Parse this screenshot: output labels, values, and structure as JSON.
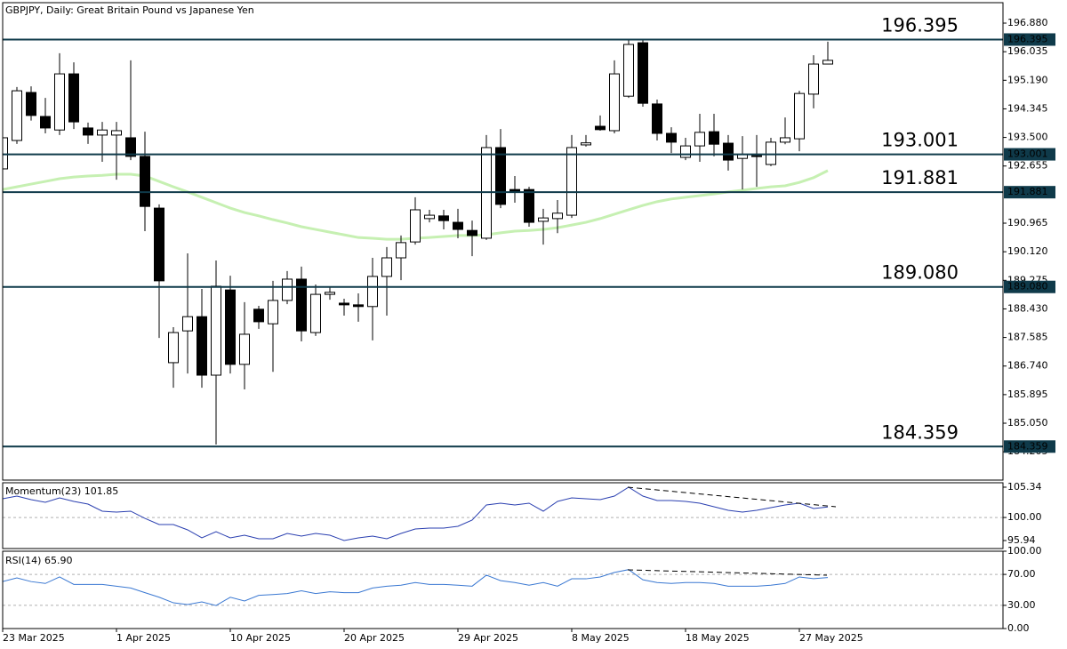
{
  "chart_data": [
    {
      "type": "candlestick",
      "title": "GBPJPY, Daily:  Great Britain Pound vs Japanese Yen",
      "categories": [
        "23 Mar 2025",
        null,
        null,
        null,
        null,
        null,
        null,
        null,
        "1 Apr 2025",
        null,
        null,
        null,
        null,
        null,
        null,
        null,
        "10 Apr 2025",
        null,
        null,
        null,
        null,
        null,
        null,
        null,
        "20 Apr 2025",
        null,
        null,
        null,
        null,
        null,
        null,
        null,
        "29 Apr 2025",
        null,
        null,
        null,
        null,
        null,
        null,
        null,
        "8 May 2025",
        null,
        null,
        null,
        null,
        null,
        null,
        null,
        "18 May 2025",
        null,
        null,
        null,
        null,
        null,
        null,
        null,
        "27 May 2025",
        null,
        null
      ],
      "open": [
        192.57,
        193.41,
        194.83,
        194.12,
        193.72,
        195.38,
        193.78,
        193.57,
        193.57,
        193.49,
        192.94,
        191.41,
        186.84,
        187.78,
        188.2,
        186.47,
        188.99,
        186.79,
        188.42,
        187.99,
        188.68,
        189.31,
        187.73,
        188.86,
        188.6,
        188.55,
        188.5,
        189.39,
        189.94,
        190.41,
        191.1,
        191.18,
        190.99,
        190.75,
        190.52,
        193.2,
        191.96,
        191.96,
        191.02,
        191.1,
        191.2,
        193.28,
        193.83,
        193.7,
        194.72,
        196.3,
        194.49,
        193.62,
        192.91,
        193.25,
        193.67,
        193.33,
        192.88,
        192.96,
        192.7,
        193.36,
        193.46,
        194.78,
        195.67
      ],
      "high": [
        193.7,
        194.99,
        195.01,
        194.67,
        195.99,
        195.72,
        193.94,
        193.96,
        193.96,
        195.78,
        193.67,
        191.52,
        187.89,
        190.07,
        189.02,
        189.86,
        189.41,
        188.63,
        188.52,
        189.26,
        189.55,
        189.68,
        189.15,
        189.1,
        188.73,
        188.89,
        189.94,
        190.26,
        190.6,
        191.73,
        191.36,
        191.36,
        191.39,
        191.04,
        193.57,
        193.75,
        192.36,
        192.04,
        191.39,
        191.65,
        193.57,
        193.57,
        194.15,
        195.78,
        196.38,
        196.38,
        194.62,
        193.8,
        193.49,
        194.2,
        194.2,
        193.57,
        193.54,
        193.57,
        193.49,
        194.09,
        194.88,
        195.93,
        196.33
      ],
      "low": [
        192.4,
        193.31,
        194.0,
        193.62,
        193.57,
        193.75,
        193.31,
        192.78,
        192.25,
        192.83,
        190.73,
        187.57,
        186.1,
        186.52,
        186.1,
        184.42,
        186.52,
        186.05,
        187.84,
        186.57,
        188.57,
        187.47,
        187.63,
        188.7,
        188.23,
        188.05,
        187.5,
        188.23,
        189.28,
        190.33,
        190.99,
        190.78,
        190.52,
        189.99,
        190.47,
        191.41,
        191.57,
        190.86,
        190.33,
        190.67,
        191.12,
        193.23,
        193.7,
        193.62,
        194.67,
        194.41,
        193.41,
        193.04,
        192.83,
        192.78,
        192.94,
        192.52,
        191.96,
        192.04,
        192.65,
        193.3,
        193.09,
        194.36,
        195.67
      ],
      "close": [
        193.49,
        194.88,
        194.15,
        193.78,
        195.38,
        193.96,
        193.57,
        193.72,
        193.7,
        192.94,
        191.46,
        189.26,
        187.73,
        188.2,
        186.47,
        189.1,
        186.79,
        187.68,
        188.05,
        188.68,
        189.31,
        187.78,
        188.86,
        188.92,
        188.55,
        188.5,
        189.39,
        189.94,
        190.39,
        191.36,
        191.2,
        191.04,
        190.78,
        190.6,
        193.2,
        191.52,
        191.91,
        190.99,
        191.12,
        191.26,
        193.2,
        193.34,
        193.73,
        195.38,
        196.25,
        194.51,
        193.62,
        193.36,
        193.25,
        193.65,
        193.3,
        192.83,
        192.99,
        192.94,
        193.36,
        193.49,
        194.8,
        195.67,
        195.78
      ],
      "up_color": "#ffffff",
      "down_color": "#000000",
      "moving_average": {
        "color": "#c6f0b2",
        "values": [
          191.96,
          192.04,
          192.12,
          192.2,
          192.28,
          192.33,
          192.36,
          192.38,
          192.41,
          192.41,
          192.36,
          192.2,
          192.04,
          191.89,
          191.73,
          191.57,
          191.41,
          191.28,
          191.18,
          191.07,
          190.97,
          190.86,
          190.78,
          190.7,
          190.62,
          190.54,
          190.52,
          190.49,
          190.49,
          190.52,
          190.54,
          190.57,
          190.6,
          190.6,
          190.62,
          190.68,
          190.73,
          190.75,
          190.78,
          190.83,
          190.91,
          190.99,
          191.1,
          191.23,
          191.36,
          191.49,
          191.6,
          191.68,
          191.73,
          191.78,
          191.83,
          191.89,
          191.94,
          191.99,
          192.04,
          192.07,
          192.17,
          192.31,
          192.52
        ]
      },
      "levels": [
        196.395,
        193.001,
        191.881,
        {
          "value": 189.08,
          "label": "189.080"
        },
        184.359
      ],
      "level_color": "#0f3a4a",
      "ylim": [
        183.368,
        197.485
      ],
      "yticks": [
        {
          "value": 196.88,
          "label": "196.880"
        },
        196.035,
        {
          "value": 195.19,
          "label": "195.190"
        },
        194.345,
        {
          "value": 193.5,
          "label": "193.500"
        },
        192.655,
        190.965,
        {
          "value": 190.12,
          "label": "190.120"
        },
        189.275,
        {
          "value": 188.43,
          "label": "188.430"
        },
        187.585,
        {
          "value": 186.74,
          "label": "186.740"
        },
        185.895,
        {
          "value": 185.05,
          "label": "185.050"
        },
        184.205
      ]
    },
    {
      "type": "line",
      "title": "Momentum(23) 101.85",
      "color": "#2a3fb0",
      "values": [
        103.3,
        103.77,
        103.15,
        102.68,
        103.46,
        102.83,
        102.36,
        101.11,
        100.95,
        101.11,
        99.85,
        98.76,
        98.76,
        97.82,
        96.41,
        97.5,
        96.41,
        96.88,
        96.25,
        96.25,
        97.19,
        96.72,
        97.19,
        96.88,
        95.94,
        96.41,
        96.72,
        96.25,
        97.19,
        97.98,
        98.13,
        98.13,
        98.45,
        99.54,
        102.21,
        102.52,
        102.21,
        102.52,
        101.11,
        102.83,
        103.46,
        103.3,
        103.15,
        103.77,
        105.34,
        103.77,
        102.99,
        102.99,
        102.83,
        102.52,
        101.89,
        101.27,
        100.95,
        101.27,
        101.74,
        102.21,
        102.52,
        101.58,
        101.85
      ],
      "ylim": [
        94.53,
        106.12
      ],
      "yticks": [
        105.34,
        {
          "value": 100,
          "label": "100.00"
        },
        95.94
      ],
      "reference_lines": [
        100
      ]
    },
    {
      "type": "line",
      "title": "RSI(14) 65.90",
      "color": "#3a78d2",
      "values": [
        60.7,
        65.5,
        60.7,
        58.3,
        66.7,
        57.1,
        57.1,
        57.1,
        54.8,
        52.4,
        46.4,
        40.5,
        33.3,
        31.0,
        34.5,
        29.8,
        40.5,
        35.7,
        42.9,
        44.0,
        45.2,
        48.8,
        45.2,
        47.6,
        46.4,
        46.4,
        52.4,
        54.8,
        56.0,
        59.5,
        57.1,
        57.1,
        56.0,
        54.8,
        69.0,
        61.9,
        59.5,
        56.0,
        59.5,
        54.8,
        64.3,
        64.3,
        66.7,
        72.6,
        76.2,
        63.1,
        59.5,
        58.3,
        59.5,
        59.5,
        58.3,
        54.8,
        54.8,
        54.8,
        56.0,
        58.3,
        66.7,
        64.5,
        65.9
      ],
      "ylim": [
        0,
        100
      ],
      "yticks": [
        {
          "value": 100,
          "label": "100.00"
        },
        {
          "value": 70,
          "label": "70.00"
        },
        {
          "value": 30,
          "label": "30.00"
        },
        {
          "value": 0,
          "label": "0.00"
        }
      ],
      "reference_lines": [
        70,
        30
      ]
    }
  ]
}
